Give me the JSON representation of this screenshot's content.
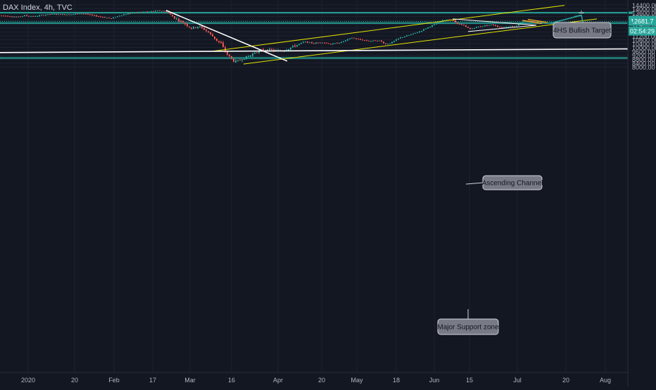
{
  "header": {
    "symbol": "DAX Index, 4h, TVC"
  },
  "colors": {
    "background": "#131722",
    "grid": "#1e2230",
    "up": "#26a69a",
    "down": "#ef5350",
    "zone": "#26a69a",
    "channel": "#e5e500",
    "trendline": "#ffffff",
    "target_arrow": "#26a69a",
    "axis_text": "#b2b5be"
  },
  "price_labels": {
    "last": "12681.7",
    "timer": "02:54:29"
  },
  "annotations": {
    "bullish_target": "4HS Bullish Target",
    "ascending_channel": "Ascending Channel",
    "support_zone": "Major Support zone"
  },
  "chart_data": {
    "type": "candlestick",
    "title": "DAX Index, 4h, TVC",
    "y_ticks": [
      14400,
      14000,
      13600,
      13200,
      12800,
      12400,
      12000,
      11600,
      11200,
      10800,
      10400,
      10000,
      9600,
      9200,
      8800,
      8400,
      8000
    ],
    "ylim": [
      7900,
      14500
    ],
    "x_ticks": [
      "2020",
      "20",
      "Feb",
      "17",
      "Mar",
      "16",
      "Apr",
      "20",
      "May",
      "18",
      "Jun",
      "15",
      "Jul",
      "20",
      "Aug"
    ],
    "grid": true,
    "last_price": 12681.7,
    "zones": [
      {
        "name": "resistance",
        "from": 13540,
        "to": 13630
      },
      {
        "name": "current",
        "from": 12480,
        "to": 12580
      },
      {
        "name": "support",
        "from": 8860,
        "to": 8980
      }
    ],
    "horizontal_line": 12700,
    "path": [
      [
        0,
        13300
      ],
      [
        12,
        13250
      ],
      [
        25,
        13150
      ],
      [
        35,
        13300
      ],
      [
        48,
        13200
      ],
      [
        60,
        13350
      ],
      [
        75,
        13450
      ],
      [
        90,
        13400
      ],
      [
        105,
        13450
      ],
      [
        120,
        13500
      ],
      [
        132,
        13300
      ],
      [
        145,
        13150
      ],
      [
        158,
        13000
      ],
      [
        170,
        13300
      ],
      [
        182,
        13500
      ],
      [
        195,
        13650
      ],
      [
        210,
        13700
      ],
      [
        228,
        13800
      ],
      [
        237,
        13700
      ],
      [
        243,
        13300
      ],
      [
        252,
        12900
      ],
      [
        262,
        12500
      ],
      [
        272,
        12000
      ],
      [
        282,
        12200
      ],
      [
        292,
        11800
      ],
      [
        300,
        11300
      ],
      [
        307,
        10800
      ],
      [
        314,
        10400
      ],
      [
        319,
        9700
      ],
      [
        323,
        9300
      ],
      [
        328,
        8900
      ],
      [
        333,
        8550
      ],
      [
        338,
        8600
      ],
      [
        343,
        8800
      ],
      [
        348,
        8950
      ],
      [
        355,
        9150
      ],
      [
        362,
        9500
      ],
      [
        370,
        9700
      ],
      [
        378,
        9800
      ],
      [
        388,
        9700
      ],
      [
        398,
        9650
      ],
      [
        408,
        9850
      ],
      [
        420,
        10200
      ],
      [
        432,
        10600
      ],
      [
        445,
        10450
      ],
      [
        458,
        10550
      ],
      [
        470,
        10350
      ],
      [
        485,
        10550
      ],
      [
        500,
        11000
      ],
      [
        512,
        10800
      ],
      [
        525,
        10650
      ],
      [
        538,
        10750
      ],
      [
        548,
        10350
      ],
      [
        556,
        10500
      ],
      [
        568,
        11000
      ],
      [
        582,
        11300
      ],
      [
        596,
        11650
      ],
      [
        610,
        12150
      ],
      [
        620,
        12450
      ],
      [
        630,
        12850
      ],
      [
        640,
        12900
      ],
      [
        650,
        12500
      ],
      [
        660,
        12200
      ],
      [
        668,
        11900
      ],
      [
        676,
        12100
      ],
      [
        688,
        12250
      ],
      [
        700,
        12350
      ],
      [
        712,
        12050
      ],
      [
        722,
        12200
      ],
      [
        732,
        12200
      ],
      [
        740,
        12550
      ],
      [
        748,
        12750
      ],
      [
        756,
        12700
      ],
      [
        764,
        12650
      ]
    ],
    "lines": [
      {
        "name": "channel-upper",
        "x1": 300,
        "v1": 9600,
        "x2": 802,
        "v2": 14350
      },
      {
        "name": "channel-lower",
        "x1": 346,
        "v1": 8300,
        "x2": 848,
        "v2": 12950
      },
      {
        "name": "downtrend",
        "x1": 236,
        "v1": 13830,
        "x2": 408,
        "v2": 8600
      },
      {
        "name": "neckline",
        "x1": 0,
        "v1": 9480,
        "x2": 892,
        "v2": 9860
      },
      {
        "name": "triangle-upper",
        "x1": 643,
        "v1": 12950,
        "x2": 762,
        "v2": 12300
      },
      {
        "name": "triangle-lower",
        "x1": 665,
        "v1": 11650,
        "x2": 762,
        "v2": 12300
      },
      {
        "name": "flag-upper",
        "x1": 750,
        "v1": 12900,
        "x2": 778,
        "v2": 12580
      },
      {
        "name": "flag-lower",
        "x1": 742,
        "v1": 12800,
        "x2": 770,
        "v2": 12480
      },
      {
        "name": "target-arrow",
        "x1": 782,
        "v1": 12500,
        "x2": 826,
        "v2": 13330
      }
    ]
  }
}
